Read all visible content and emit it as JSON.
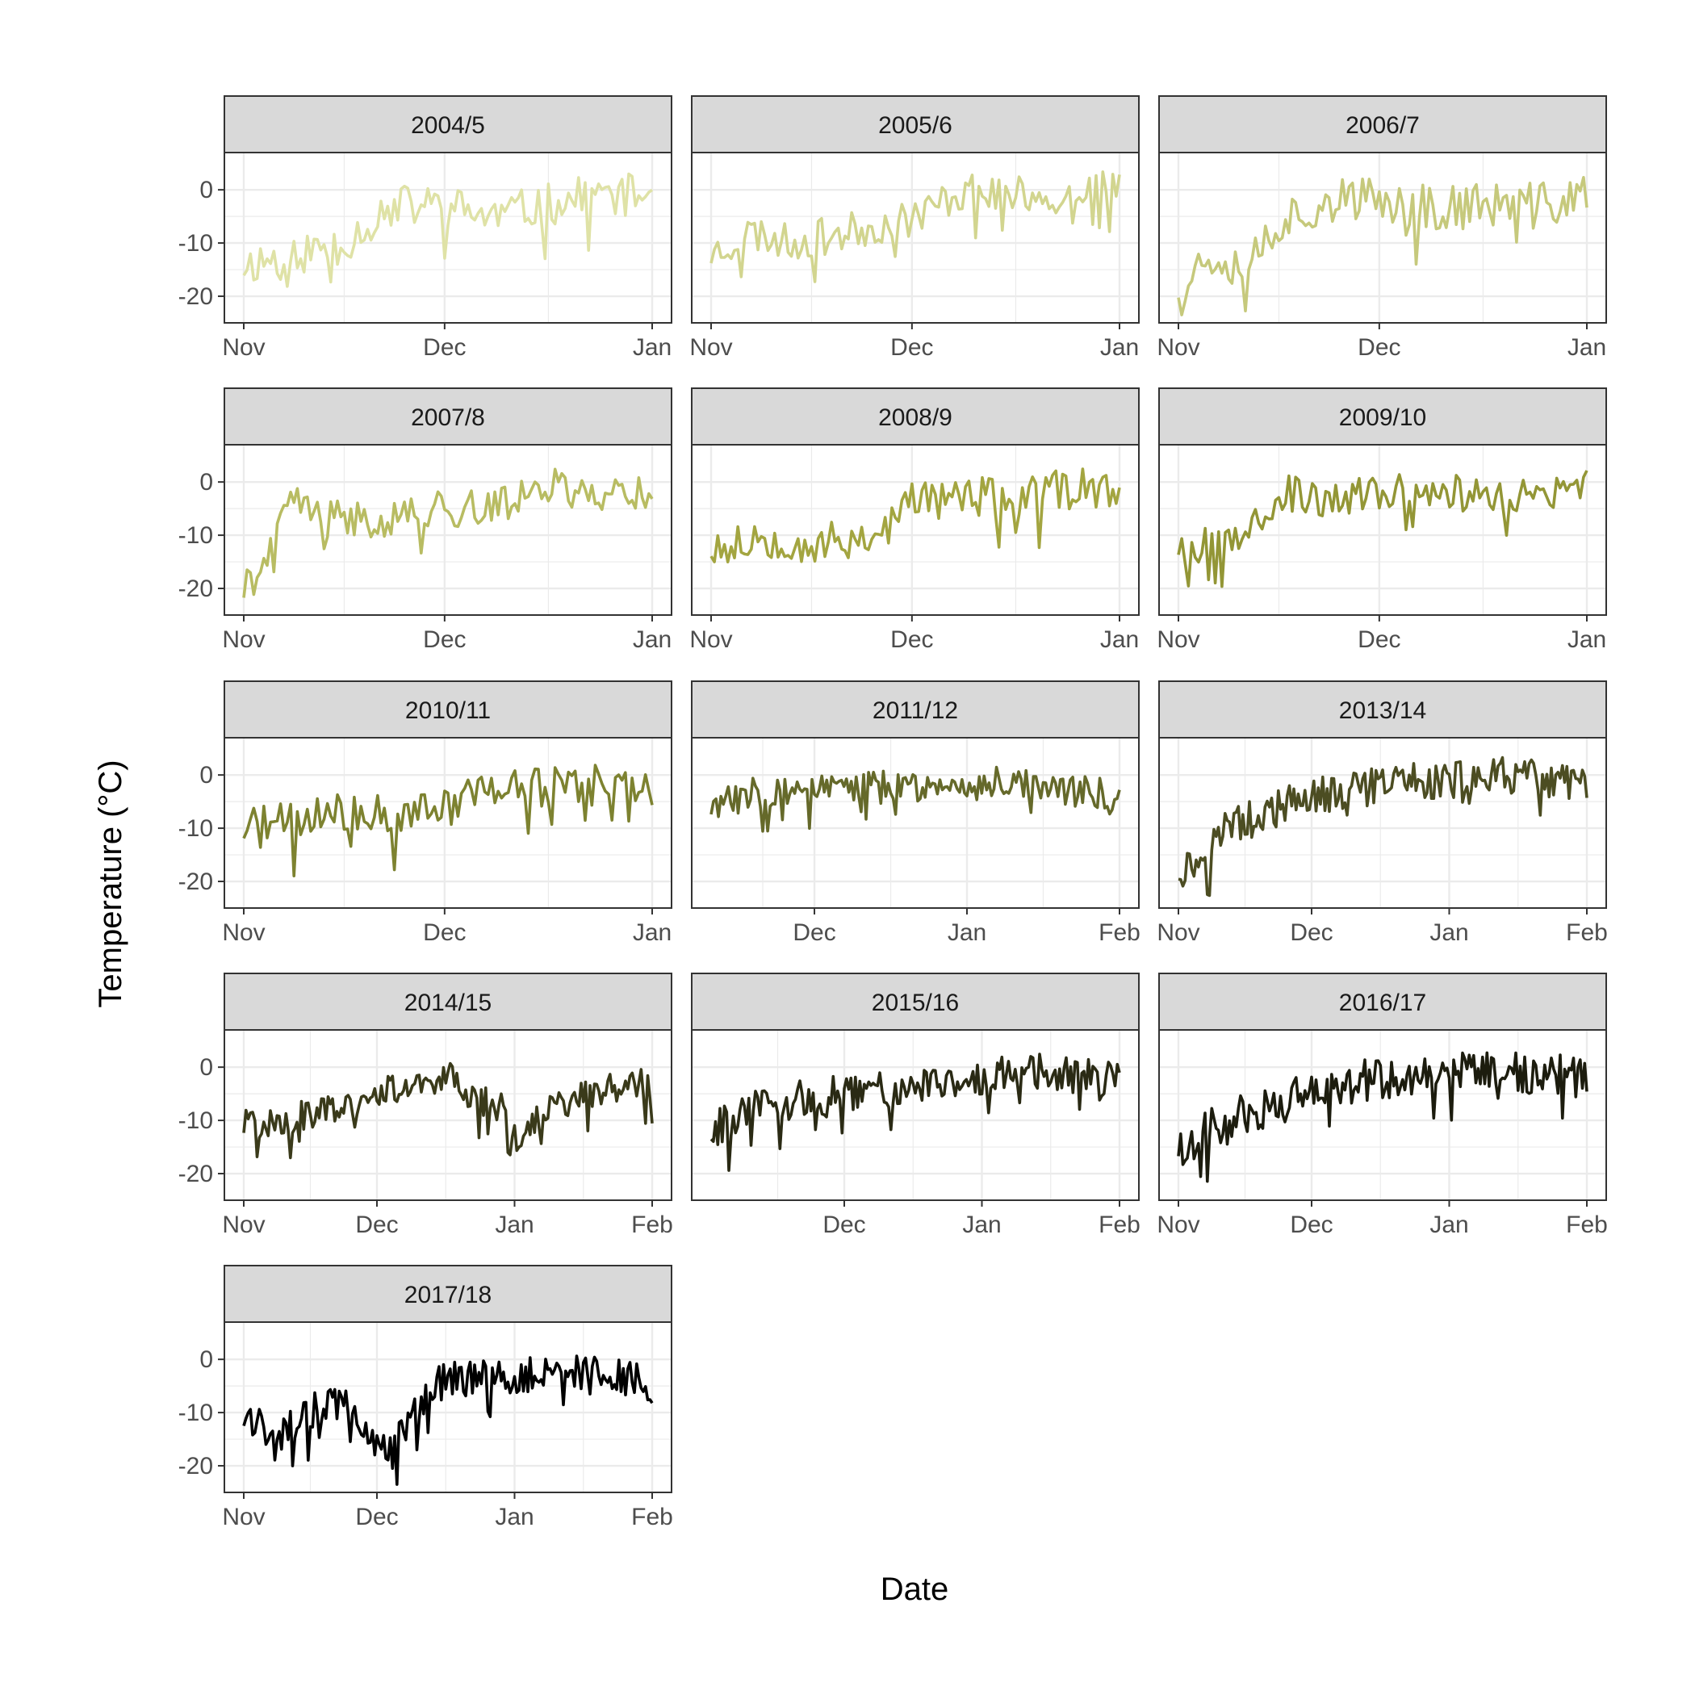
{
  "chart_data": {
    "type": "line",
    "xlabel": "Date",
    "ylabel": "Temperature (°C)",
    "y_ticks": [
      0,
      -10,
      -20
    ],
    "ylim": [
      -25,
      7
    ],
    "grid": true,
    "panels": [
      {
        "name": "2004/5",
        "color": "#dfe2a6",
        "x_ticks": [
          "Nov",
          "Dec",
          "Jan"
        ],
        "x_range": [
          "2004-11-01",
          "2005-01-01"
        ],
        "seed": 11,
        "anchors": [
          [
            0,
            -14
          ],
          [
            8,
            -12
          ],
          [
            15,
            -10
          ],
          [
            22,
            -3
          ],
          [
            30,
            -3
          ],
          [
            37,
            -5
          ],
          [
            45,
            -3
          ],
          [
            52,
            -1
          ],
          [
            61,
            -1
          ]
        ],
        "noise": 4
      },
      {
        "name": "2005/6",
        "color": "#d2d58f",
        "x_ticks": [
          "Nov",
          "Dec",
          "Jan"
        ],
        "x_range": [
          "2005-11-01",
          "2006-01-01"
        ],
        "seed": 23,
        "anchors": [
          [
            0,
            -12
          ],
          [
            6,
            -8
          ],
          [
            12,
            -10
          ],
          [
            20,
            -8
          ],
          [
            28,
            -6
          ],
          [
            32,
            -4
          ],
          [
            38,
            0
          ],
          [
            46,
            -1
          ],
          [
            54,
            0
          ],
          [
            61,
            0
          ]
        ],
        "noise": 3.5
      },
      {
        "name": "2006/7",
        "color": "#c6c97c",
        "x_ticks": [
          "Nov",
          "Dec",
          "Jan"
        ],
        "x_range": [
          "2006-11-01",
          "2007-01-01"
        ],
        "seed": 37,
        "anchors": [
          [
            0,
            -18
          ],
          [
            5,
            -12
          ],
          [
            10,
            -14
          ],
          [
            15,
            -6
          ],
          [
            22,
            -2
          ],
          [
            30,
            -2
          ],
          [
            38,
            -3
          ],
          [
            46,
            -3
          ],
          [
            54,
            -3
          ],
          [
            61,
            -1
          ]
        ],
        "noise": 4.5
      },
      {
        "name": "2007/8",
        "color": "#b8bc62",
        "x_ticks": [
          "Nov",
          "Dec",
          "Jan"
        ],
        "x_range": [
          "2007-11-01",
          "2008-01-01"
        ],
        "seed": 41,
        "anchors": [
          [
            0,
            -20
          ],
          [
            4,
            -14
          ],
          [
            7,
            -3
          ],
          [
            12,
            -7
          ],
          [
            20,
            -7
          ],
          [
            30,
            -5
          ],
          [
            38,
            -5
          ],
          [
            44,
            0
          ],
          [
            50,
            -2
          ],
          [
            61,
            -2
          ]
        ],
        "noise": 3.5
      },
      {
        "name": "2008/9",
        "color": "#a3a540",
        "x_ticks": [
          "Nov",
          "Dec",
          "Jan"
        ],
        "x_range": [
          "2008-11-01",
          "2009-01-01"
        ],
        "seed": 53,
        "anchors": [
          [
            0,
            -12
          ],
          [
            8,
            -10
          ],
          [
            16,
            -12
          ],
          [
            24,
            -10
          ],
          [
            28,
            -7
          ],
          [
            30,
            -3
          ],
          [
            40,
            -3
          ],
          [
            48,
            -3
          ],
          [
            54,
            -1
          ],
          [
            61,
            -2
          ]
        ],
        "noise": 4
      },
      {
        "name": "2009/10",
        "color": "#939636",
        "x_ticks": [
          "Nov",
          "Dec",
          "Jan"
        ],
        "x_range": [
          "2009-11-01",
          "2010-01-01"
        ],
        "seed": 67,
        "anchors": [
          [
            0,
            -12
          ],
          [
            6,
            -12
          ],
          [
            12,
            -6
          ],
          [
            16,
            -2
          ],
          [
            22,
            -4
          ],
          [
            30,
            -2
          ],
          [
            38,
            -1
          ],
          [
            46,
            -3
          ],
          [
            54,
            -3
          ],
          [
            61,
            -1
          ]
        ],
        "noise": 3.5
      },
      {
        "name": "2010/11",
        "color": "#7d8230",
        "x_ticks": [
          "Nov",
          "Dec",
          "Jan"
        ],
        "x_range": [
          "2010-11-01",
          "2011-01-01"
        ],
        "seed": 71,
        "anchors": [
          [
            0,
            -10
          ],
          [
            8,
            -9
          ],
          [
            15,
            -7
          ],
          [
            22,
            -8
          ],
          [
            30,
            -6
          ],
          [
            36,
            -2
          ],
          [
            42,
            -3
          ],
          [
            50,
            -1
          ],
          [
            61,
            -2
          ]
        ],
        "noise": 4
      },
      {
        "name": "2011/12",
        "color": "#65692a",
        "x_ticks": [
          "Dec",
          "Jan",
          "Feb"
        ],
        "x_range": [
          "2011-11-10",
          "2012-02-01"
        ],
        "seed": 83,
        "anchors": [
          [
            0,
            -6
          ],
          [
            10,
            -3
          ],
          [
            20,
            -3
          ],
          [
            35,
            -2
          ],
          [
            50,
            -2
          ],
          [
            65,
            -1
          ],
          [
            74,
            -3
          ],
          [
            83,
            -4
          ]
        ],
        "noise": 3
      },
      {
        "name": "2013/14",
        "color": "#4c4d22",
        "x_ticks": [
          "Nov",
          "Dec",
          "Jan",
          "Feb"
        ],
        "x_range": [
          "2013-11-01",
          "2014-02-01"
        ],
        "seed": 97,
        "anchors": [
          [
            0,
            -18
          ],
          [
            5,
            -16
          ],
          [
            10,
            -10
          ],
          [
            20,
            -7
          ],
          [
            30,
            -4
          ],
          [
            40,
            -3
          ],
          [
            50,
            -1
          ],
          [
            61,
            -1
          ],
          [
            75,
            0
          ],
          [
            92,
            -2
          ]
        ],
        "noise": 3.5
      },
      {
        "name": "2014/15",
        "color": "#3a3a1a",
        "x_ticks": [
          "Nov",
          "Dec",
          "Jan",
          "Feb"
        ],
        "x_range": [
          "2014-11-01",
          "2015-02-01"
        ],
        "seed": 101,
        "anchors": [
          [
            0,
            -11
          ],
          [
            10,
            -10
          ],
          [
            20,
            -8
          ],
          [
            30,
            -5
          ],
          [
            40,
            -3
          ],
          [
            46,
            -1
          ],
          [
            52,
            -6
          ],
          [
            58,
            -8
          ],
          [
            62,
            -14
          ],
          [
            68,
            -8
          ],
          [
            80,
            -4
          ],
          [
            92,
            -3
          ]
        ],
        "noise": 3
      },
      {
        "name": "2015/16",
        "color": "#2a2a14",
        "x_ticks": [
          "Dec",
          "Jan",
          "Feb"
        ],
        "x_range": [
          "2015-11-01",
          "2016-02-01"
        ],
        "seed": 113,
        "anchors": [
          [
            0,
            -12
          ],
          [
            10,
            -8
          ],
          [
            20,
            -6
          ],
          [
            30,
            -5
          ],
          [
            38,
            -4
          ],
          [
            45,
            -4
          ],
          [
            55,
            -3
          ],
          [
            65,
            -1
          ],
          [
            75,
            -1
          ],
          [
            83,
            -2
          ]
        ],
        "noise": 3.5
      },
      {
        "name": "2016/17",
        "color": "#1c1c0e",
        "x_ticks": [
          "Nov",
          "Dec",
          "Jan",
          "Feb"
        ],
        "x_range": [
          "2016-11-01",
          "2017-02-01"
        ],
        "seed": 127,
        "anchors": [
          [
            0,
            -15
          ],
          [
            6,
            -12
          ],
          [
            15,
            -9
          ],
          [
            25,
            -6
          ],
          [
            35,
            -4
          ],
          [
            45,
            -2
          ],
          [
            55,
            -1
          ],
          [
            65,
            -1
          ],
          [
            75,
            -1
          ],
          [
            92,
            -2
          ]
        ],
        "noise": 4
      },
      {
        "name": "2017/18",
        "color": "#000000",
        "x_ticks": [
          "Nov",
          "Dec",
          "Jan",
          "Feb"
        ],
        "x_range": [
          "2017-11-01",
          "2018-02-01"
        ],
        "seed": 131,
        "anchors": [
          [
            0,
            -11
          ],
          [
            8,
            -14
          ],
          [
            15,
            -10
          ],
          [
            22,
            -8
          ],
          [
            28,
            -14
          ],
          [
            33,
            -18
          ],
          [
            38,
            -10
          ],
          [
            45,
            -4
          ],
          [
            55,
            -3
          ],
          [
            62,
            -3
          ],
          [
            70,
            -3
          ],
          [
            80,
            -2
          ],
          [
            92,
            -5
          ]
        ],
        "noise": 3.5
      }
    ]
  }
}
